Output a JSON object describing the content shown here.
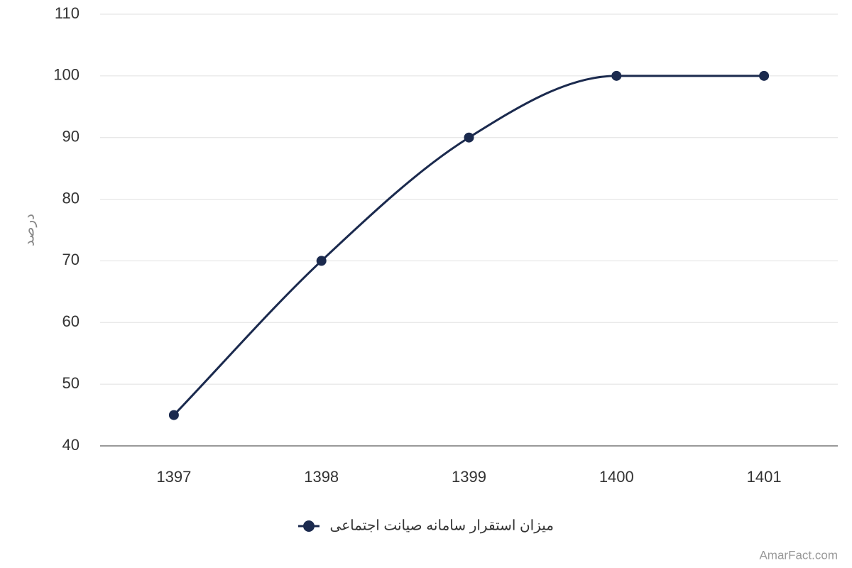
{
  "chart_data": {
    "type": "line",
    "y_label": "درصد",
    "categories": [
      "1397",
      "1398",
      "1399",
      "1400",
      "1401"
    ],
    "series": [
      {
        "name": "میزان استقرار سامانه صیانت اجتماعی",
        "color": "#1b2a4e",
        "values": [
          45,
          70,
          90,
          100,
          100
        ]
      }
    ],
    "ylim": [
      40,
      110
    ],
    "yticks": [
      40,
      50,
      60,
      70,
      80,
      90,
      100,
      110
    ],
    "grid": true,
    "smooth": true,
    "legend": "bottom",
    "credit": "AmarFact.com"
  }
}
